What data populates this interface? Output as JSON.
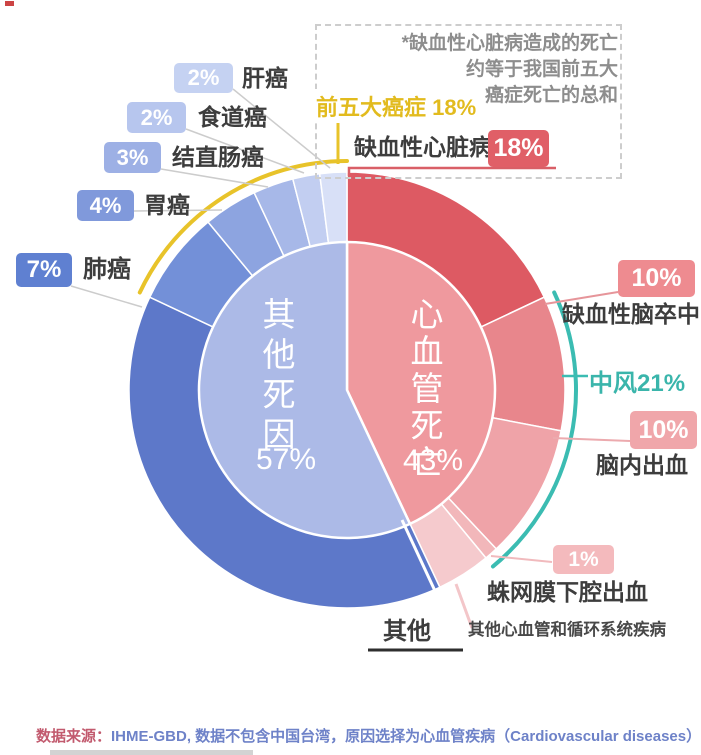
{
  "note": {
    "lines": [
      "*缺血性心脏病造成的死亡",
      "约等于我国前五大",
      "癌症死亡的总和"
    ]
  },
  "top5_bracket": {
    "label": "前五大癌症 18%"
  },
  "ihd": {
    "label": "缺血性心脏病",
    "badge": "18%"
  },
  "callouts": {
    "liver": {
      "badge": "2%",
      "label": "肝癌"
    },
    "esophageal": {
      "badge": "2%",
      "label": "食道癌"
    },
    "colorectal": {
      "badge": "3%",
      "label": "结直肠癌"
    },
    "stomach": {
      "badge": "4%",
      "label": "胃癌"
    },
    "lung": {
      "badge": "7%",
      "label": "肺癌"
    },
    "ischemic_stroke": {
      "badge": "10%",
      "label": "缺血性脑卒中"
    },
    "stroke_total": {
      "label": "中风21%"
    },
    "intracerebral": {
      "badge": "10%",
      "label": "脑内出血"
    },
    "subarachnoid": {
      "badge": "1%",
      "label": "蛛网膜下腔出血"
    },
    "other_cvd": {
      "label": "其他心血管和循环系统疾病"
    },
    "other_causes": {
      "label": "其他"
    }
  },
  "center": {
    "left_name": "其他死因",
    "left_pct": "57%",
    "right_name": "心血管死亡",
    "right_pct": "43%"
  },
  "source": {
    "prefix": "数据来源：",
    "text": "IHME-GBD, 数据不包含中国台湾，原因选择为心血管疾病（Cardiovascular diseases）"
  },
  "chart_data": {
    "type": "pie",
    "units": "%",
    "clockwise_from_top": true,
    "inner_split": {
      "cardio": {
        "label": "心血管死亡",
        "value": 43,
        "color": "#ef999e"
      },
      "other": {
        "label": "其他死因",
        "value": 57,
        "color": "#acbae7"
      }
    },
    "segments": [
      {
        "id": "ihd",
        "label": "缺血性心脏病",
        "value": 18,
        "color": "#dd5a63",
        "group": "cardio"
      },
      {
        "id": "ischemic-stroke",
        "label": "缺血性脑卒中",
        "value": 10,
        "color": "#e8868c",
        "group": "cardio"
      },
      {
        "id": "intracerebral",
        "label": "脑内出血",
        "value": 10,
        "color": "#efa3a8",
        "group": "cardio"
      },
      {
        "id": "subarachnoid",
        "label": "蛛网膜下腔出血",
        "value": 1,
        "color": "#f2b7ba",
        "group": "cardio"
      },
      {
        "id": "other-cvd",
        "label": "其他心血管和循环系统疾病",
        "value": 4,
        "color": "#f5cacd",
        "group": "cardio"
      },
      {
        "id": "other-causes",
        "label": "其他",
        "value": 39,
        "color": "#5d78c9",
        "group": "other"
      },
      {
        "id": "lung-cancer",
        "label": "肺癌",
        "value": 7,
        "color": "#7390d8",
        "group": "cancer"
      },
      {
        "id": "stomach-cancer",
        "label": "胃癌",
        "value": 4,
        "color": "#8da4e0",
        "group": "cancer"
      },
      {
        "id": "colorectal-cancer",
        "label": "结直肠癌",
        "value": 3,
        "color": "#a7b8e8",
        "group": "cancer"
      },
      {
        "id": "esophageal-cancer",
        "label": "食道癌",
        "value": 2,
        "color": "#c2cef1",
        "group": "cancer"
      },
      {
        "id": "liver-cancer",
        "label": "肝癌",
        "value": 2,
        "color": "#d8e0f7",
        "group": "cancer"
      }
    ],
    "group_brackets": [
      {
        "id": "top5-cancers",
        "label": "前五大癌症 18%",
        "value": 18,
        "from_pct": 82,
        "to_pct": 100,
        "color": "#e8c32a"
      },
      {
        "id": "stroke-total",
        "label": "中风21%",
        "value": 21,
        "from_pct": 18,
        "to_pct": 39,
        "color": "#3bbcb2"
      }
    ]
  }
}
